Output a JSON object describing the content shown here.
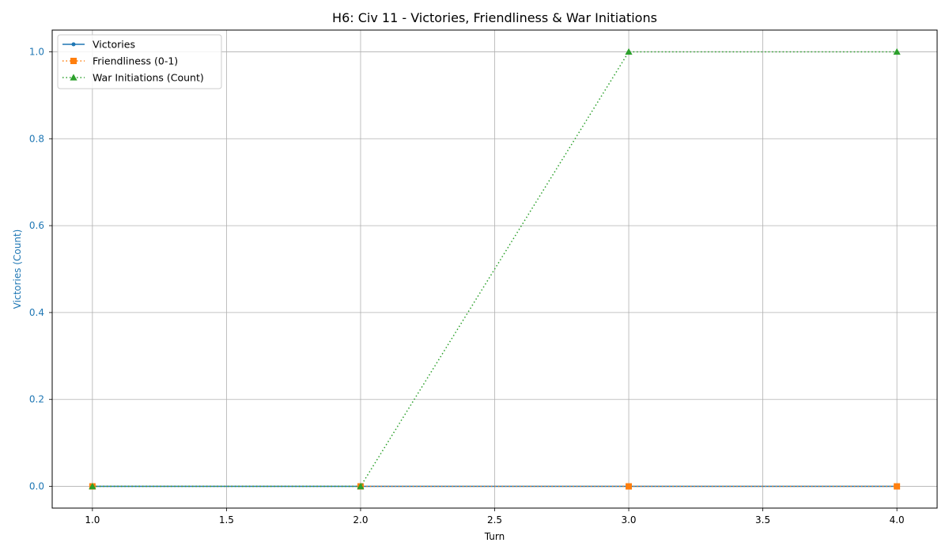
{
  "chart_data": {
    "type": "line",
    "title": "H6: Civ 11 - Victories, Friendliness & War Initiations",
    "xlabel": "Turn",
    "ylabel": "Victories (Count)",
    "xlim": [
      0.85,
      4.15
    ],
    "ylim": [
      -0.05,
      1.05
    ],
    "xticks": [
      "1.0",
      "1.5",
      "2.0",
      "2.5",
      "3.0",
      "3.5",
      "4.0"
    ],
    "yticks": [
      "0.0",
      "0.2",
      "0.4",
      "0.6",
      "0.8",
      "1.0"
    ],
    "grid": true,
    "legend_position": "top-left",
    "ylabel_color": "#1f77b4",
    "x": [
      1,
      2,
      3,
      4
    ],
    "series": [
      {
        "name": "Victories",
        "values": [
          0,
          0,
          0,
          0
        ],
        "color": "#1f77b4",
        "line": "solid",
        "marker": "circle"
      },
      {
        "name": "Friendliness (0-1)",
        "values": [
          0,
          0,
          0,
          0
        ],
        "color": "#ff7f0e",
        "line": "dotted",
        "marker": "square"
      },
      {
        "name": "War Initiations (Count)",
        "values": [
          0,
          0,
          1,
          1
        ],
        "color": "#2ca02c",
        "line": "dotted",
        "marker": "triangle"
      }
    ]
  }
}
